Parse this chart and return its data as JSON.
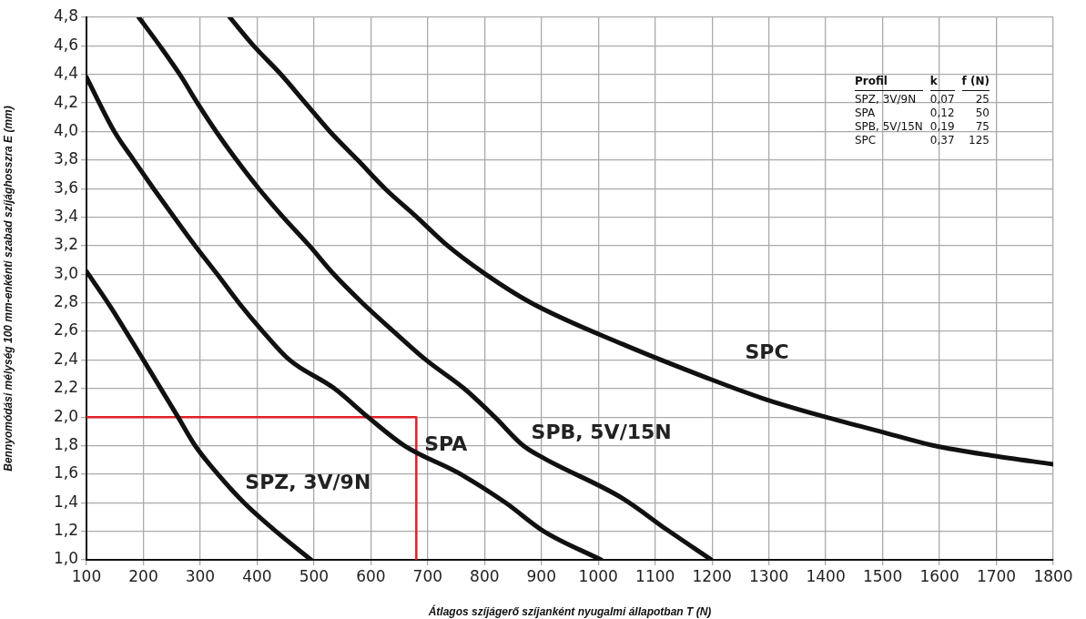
{
  "chart_data": {
    "type": "line",
    "xlabel": "Átlagos szíjágerő szíjanként nyugalmi állapotban T (N)",
    "ylabel": "Bennyomódási mélység 100 mm-enkénti szabad szíjághosszra E (mm)",
    "xlim": [
      100,
      1800
    ],
    "xticks": [
      100,
      200,
      300,
      400,
      500,
      600,
      700,
      800,
      900,
      1000,
      1100,
      1200,
      1300,
      1400,
      1500,
      1600,
      1700,
      1800
    ],
    "ylim": [
      1.0,
      4.8
    ],
    "yticks": [
      {
        "value": 1.0,
        "label": "1,0"
      },
      {
        "value": 1.2,
        "label": "1,2"
      },
      {
        "value": 1.4,
        "label": "1,4"
      },
      {
        "value": 1.6,
        "label": "1,6"
      },
      {
        "value": 1.8,
        "label": "1,8"
      },
      {
        "value": 2.0,
        "label": "2,0"
      },
      {
        "value": 2.2,
        "label": "2,2"
      },
      {
        "value": 2.4,
        "label": "2,4"
      },
      {
        "value": 2.6,
        "label": "2,6"
      },
      {
        "value": 2.8,
        "label": "2,8"
      },
      {
        "value": 3.0,
        "label": "3,0"
      },
      {
        "value": 3.2,
        "label": "3,2"
      },
      {
        "value": 3.4,
        "label": "3,4"
      },
      {
        "value": 3.6,
        "label": "3,6"
      },
      {
        "value": 3.8,
        "label": "3,8"
      },
      {
        "value": 4.0,
        "label": "4,0"
      },
      {
        "value": 4.2,
        "label": "4,2"
      },
      {
        "value": 4.4,
        "label": "4,4"
      },
      {
        "value": 4.6,
        "label": "4,6"
      },
      {
        "value": 4.8,
        "label": "4,8"
      }
    ],
    "grid": true,
    "legend": false,
    "marker": "none",
    "line_style": "solid",
    "series": [
      {
        "name": "SPZ, 3V/9N",
        "color": "#111111",
        "x": [
          100,
          141,
          200,
          261,
          291,
          331,
          377,
          433,
          495
        ],
        "values": [
          3.02,
          2.78,
          2.4,
          2.0,
          1.8,
          1.6,
          1.4,
          1.2,
          1.0
        ]
      },
      {
        "name": "SPA",
        "color": "#111111",
        "x": [
          100,
          149,
          183,
          218,
          254,
          291,
          330,
          368,
          410,
          457,
          536,
          595,
          659,
          758,
          837,
          904,
          1005
        ],
        "values": [
          4.38,
          4.0,
          3.8,
          3.6,
          3.4,
          3.2,
          3.0,
          2.8,
          2.6,
          2.4,
          2.2,
          2.0,
          1.8,
          1.6,
          1.4,
          1.2,
          1.0
        ]
      },
      {
        "name": "SPB, 5V/15N",
        "color": "#111111",
        "x": [
          192,
          229,
          264,
          295,
          328,
          364,
          403,
          446,
          492,
          535,
          585,
          640,
          697,
          764,
          818,
          868,
          905,
          1043,
          1121,
          1199
        ],
        "values": [
          4.8,
          4.6,
          4.4,
          4.2,
          4.0,
          3.8,
          3.6,
          3.4,
          3.2,
          3.0,
          2.8,
          2.6,
          2.4,
          2.2,
          2.0,
          1.8,
          1.71,
          1.43,
          1.21,
          1.0
        ]
      },
      {
        "name": "SPC",
        "color": "#111111",
        "x": [
          352,
          394,
          442,
          485,
          528,
          577,
          625,
          681,
          735,
          802,
          882,
          1043,
          1194,
          1290,
          1391,
          1495,
          1590,
          1692,
          1800
        ],
        "values": [
          4.8,
          4.6,
          4.4,
          4.2,
          4.0,
          3.8,
          3.6,
          3.4,
          3.2,
          3.0,
          2.8,
          2.51,
          2.27,
          2.13,
          2.01,
          1.9,
          1.8,
          1.73,
          1.67
        ]
      },
      {
        "type": "line",
        "color": "#e02028",
        "x": [
          100,
          680,
          680
        ],
        "values": [
          2.0,
          2.0,
          1.0
        ]
      }
    ],
    "annotations": [
      "Profil",
      "k",
      "f (N)",
      "SPZ, 3V/9N",
      "0,07",
      "25",
      "SPA",
      "0,12",
      "50",
      "SPB, 5V/15N",
      "0,19",
      "75",
      "SPC",
      "0,37",
      "125"
    ]
  }
}
